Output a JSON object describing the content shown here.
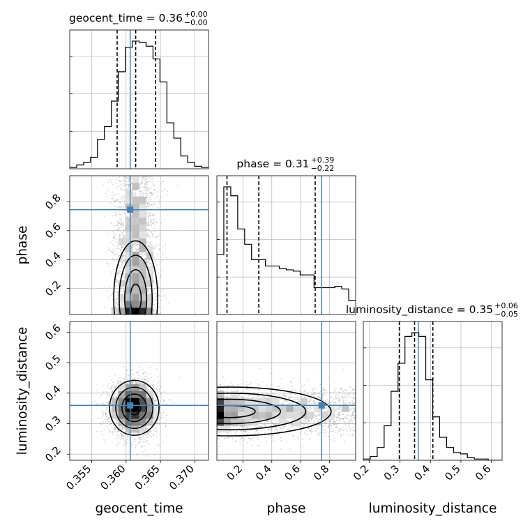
{
  "chart_data": {
    "type": "corner",
    "parameters": [
      "geocent_time",
      "phase",
      "luminosity_distance"
    ],
    "axis_labels": {
      "geocent_time": "geocent_time",
      "phase": "phase",
      "luminosity_distance": "luminosity_distance"
    },
    "ranges": {
      "geocent_time": [
        0.3518,
        0.372
      ],
      "phase": [
        0.02,
        0.98
      ],
      "luminosity_distance": [
        0.18,
        0.635
      ]
    },
    "ticks": {
      "geocent_time": [
        0.355,
        0.36,
        0.365,
        0.37
      ],
      "phase": [
        0.2,
        0.4,
        0.6,
        0.8
      ],
      "luminosity_distance": [
        0.2,
        0.3,
        0.4,
        0.5,
        0.6
      ]
    },
    "tick_labels": {
      "geocent_time": [
        "0.355",
        "0.360",
        "0.365",
        "0.370"
      ],
      "phase": [
        "0.2",
        "0.4",
        "0.6",
        "0.8"
      ],
      "luminosity_distance": [
        "0.2",
        "0.3",
        "0.4",
        "0.5",
        "0.6"
      ]
    },
    "truths": {
      "geocent_time": 0.3606,
      "phase": 0.745,
      "luminosity_distance": 0.36
    },
    "titles": [
      {
        "param": "geocent_time",
        "text": "geocent_time = 0.36",
        "sup": "+0.00",
        "sub": "−0.00"
      },
      {
        "param": "phase",
        "text": "phase = 0.31",
        "sup": "+0.39",
        "sub": "−0.22"
      },
      {
        "param": "luminosity_distance",
        "text": "luminosity_distance = 0.35",
        "sup": "+0.06",
        "sub": "−0.05"
      }
    ],
    "quantiles": {
      "geocent_time": [
        0.3587,
        0.3614,
        0.3643
      ],
      "phase": [
        0.09,
        0.31,
        0.7
      ],
      "luminosity_distance": [
        0.298,
        0.348,
        0.408
      ]
    },
    "hist1d": {
      "geocent_time": {
        "edges_start": 0.3518,
        "bin_width": 0.00101,
        "counts": [
          0.01,
          0.03,
          0.05,
          0.09,
          0.23,
          0.33,
          0.53,
          0.76,
          0.95,
          1.0,
          0.99,
          0.96,
          0.86,
          0.68,
          0.36,
          0.24,
          0.1,
          0.05,
          0.02,
          0.01
        ]
      },
      "phase": {
        "edges_start": 0.02,
        "bin_width": 0.048,
        "counts": [
          0.47,
          1.0,
          0.93,
          0.67,
          0.55,
          0.43,
          0.43,
          0.38,
          0.38,
          0.36,
          0.35,
          0.34,
          0.31,
          0.31,
          0.21,
          0.21,
          0.21,
          0.22,
          0.2,
          0.11
        ]
      },
      "luminosity_distance": {
        "edges_start": 0.18,
        "bin_width": 0.02275,
        "counts": [
          0.01,
          0.03,
          0.1,
          0.27,
          0.54,
          0.76,
          0.97,
          1.0,
          0.97,
          0.63,
          0.34,
          0.18,
          0.1,
          0.06,
          0.05,
          0.02,
          0.01,
          0.01,
          0.0,
          0.0
        ]
      }
    },
    "hist2d": [
      {
        "x": "geocent_time",
        "y": "phase",
        "mode": {
          "x": 0.3614,
          "y": 0.13
        },
        "spread": {
          "x": 0.0016,
          "y": 0.2
        }
      },
      {
        "x": "geocent_time",
        "y": "luminosity_distance",
        "mode": {
          "x": 0.3612,
          "y": 0.352
        },
        "spread": {
          "x": 0.0018,
          "y": 0.045
        }
      },
      {
        "x": "phase",
        "y": "luminosity_distance",
        "mode": {
          "x": 0.11,
          "y": 0.34
        },
        "spread": {
          "x": 0.35,
          "y": 0.04
        }
      }
    ],
    "colors": {
      "truth": "#4682b4",
      "contour": "#000000",
      "grid": "#b0b0b0",
      "points": "#808080"
    },
    "grid": true
  }
}
